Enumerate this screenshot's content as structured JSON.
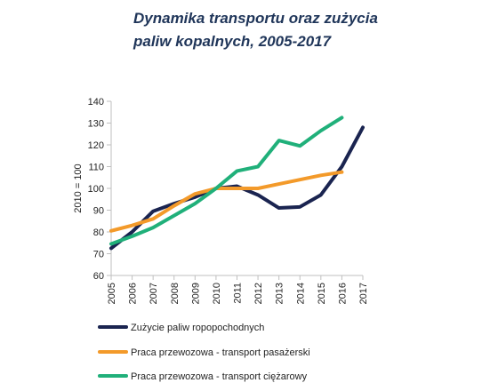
{
  "title_lines": [
    "Dynamika transportu oraz zużycia",
    "paliw kopalnych, 2005-2017"
  ],
  "chart_data": {
    "type": "line",
    "title": "Dynamika transportu oraz zużycia paliw kopalnych, 2005-2017",
    "xlabel": "",
    "ylabel": "2010 = 100",
    "categories": [
      "2005",
      "2006",
      "2007",
      "2008",
      "2009",
      "2010",
      "2011",
      "2012",
      "2013",
      "2014",
      "2015",
      "2016",
      "2017"
    ],
    "ylim": [
      60,
      140
    ],
    "yticks": [
      60,
      70,
      80,
      90,
      100,
      110,
      120,
      130,
      140
    ],
    "grid": false,
    "legend_position": "bottom",
    "series": [
      {
        "name": "Zużycie paliw ropopochodnych",
        "color": "#1a2450",
        "values": [
          72.5,
          80,
          89.5,
          93,
          96,
          100,
          101,
          97,
          91,
          91.5,
          97,
          110,
          128
        ]
      },
      {
        "name": "Praca przewozowa - transport pasażerski",
        "color": "#f39a2a",
        "values": [
          80.5,
          83,
          86,
          92,
          97.5,
          100,
          100,
          100,
          102,
          104,
          106,
          107.5,
          null
        ]
      },
      {
        "name": "Praca przewozowa - transport ciężarowy",
        "color": "#20b07a",
        "values": [
          74.5,
          78,
          82,
          87.5,
          93,
          100,
          108,
          110,
          122,
          119.5,
          126.5,
          132.5,
          null
        ]
      }
    ]
  }
}
